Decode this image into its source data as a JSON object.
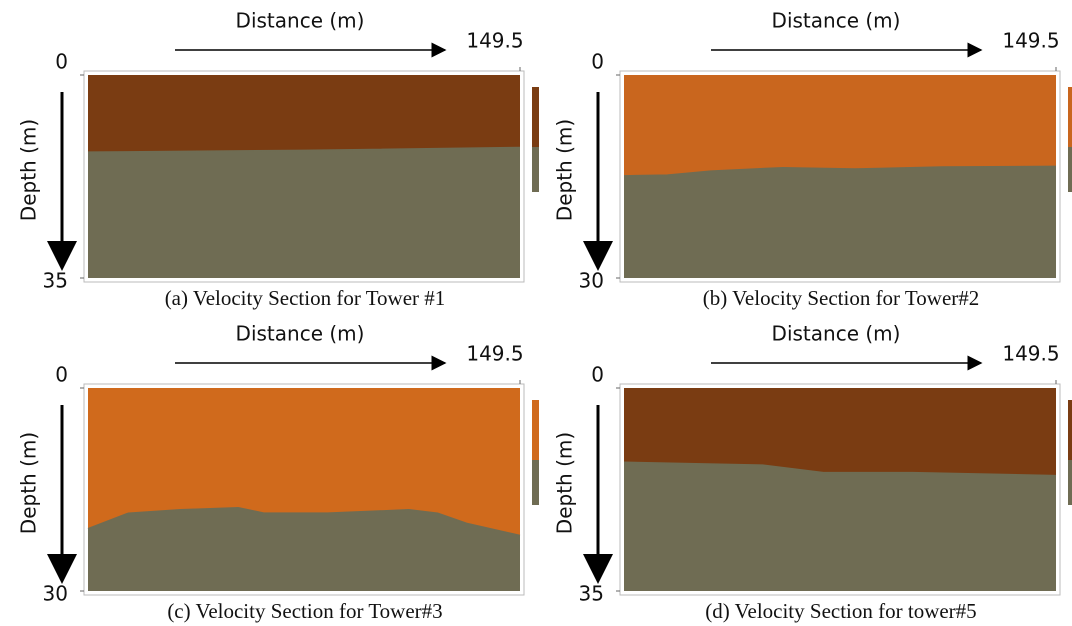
{
  "chart_data": [
    {
      "type": "section",
      "title": "(a) Velocity Section for Tower #1",
      "xlabel": "Distance (m)",
      "ylabel": "Depth (m)",
      "xlim": [
        0,
        149.5
      ],
      "ylim": [
        0,
        35
      ],
      "xticks": [
        149.5
      ],
      "yticks": [
        0,
        35
      ],
      "x": [
        0,
        75,
        149.5
      ],
      "values": [
        13.3,
        13.0,
        12.5
      ],
      "colors": [
        "#7a3c12",
        "#6f6c53"
      ]
    },
    {
      "type": "section",
      "title": "(b) Velocity Section for Tower#2",
      "xlabel": "Distance (m)",
      "ylabel": "Depth (m)",
      "xlim": [
        0,
        149.5
      ],
      "ylim": [
        0,
        30
      ],
      "xticks": [
        149.5
      ],
      "yticks": [
        0,
        30
      ],
      "x": [
        0,
        15,
        30,
        55,
        80,
        110,
        149.5
      ],
      "values": [
        14.9,
        14.8,
        14.2,
        13.7,
        13.9,
        13.6,
        13.5
      ],
      "colors": [
        "#c9661e",
        "#6f6c53"
      ]
    },
    {
      "type": "section",
      "title": "(c) Velocity Section for Tower#3",
      "xlabel": "Distance (m)",
      "ylabel": "Depth (m)",
      "xlim": [
        0,
        149.5
      ],
      "ylim": [
        0,
        30
      ],
      "xticks": [
        149.5
      ],
      "yticks": [
        0,
        30
      ],
      "x": [
        0,
        14,
        32,
        52,
        61,
        83,
        111,
        121,
        131,
        149.5
      ],
      "values": [
        20.8,
        18.5,
        18.0,
        17.7,
        18.5,
        18.5,
        18.0,
        18.5,
        20.0,
        21.8
      ],
      "colors": [
        "#d06a1c",
        "#6f6c53"
      ]
    },
    {
      "type": "section",
      "title": "(d) Velocity Section for tower#5",
      "xlabel": "Distance (m)",
      "ylabel": "Depth (m)",
      "xlim": [
        0,
        149.5
      ],
      "ylim": [
        0,
        35
      ],
      "xticks": [
        149.5
      ],
      "yticks": [
        0,
        35
      ],
      "x": [
        0,
        48,
        69,
        100,
        149.5
      ],
      "values": [
        12.8,
        13.3,
        14.6,
        14.6,
        15.1
      ],
      "colors": [
        "#7a3c12",
        "#6f6c53"
      ]
    }
  ]
}
